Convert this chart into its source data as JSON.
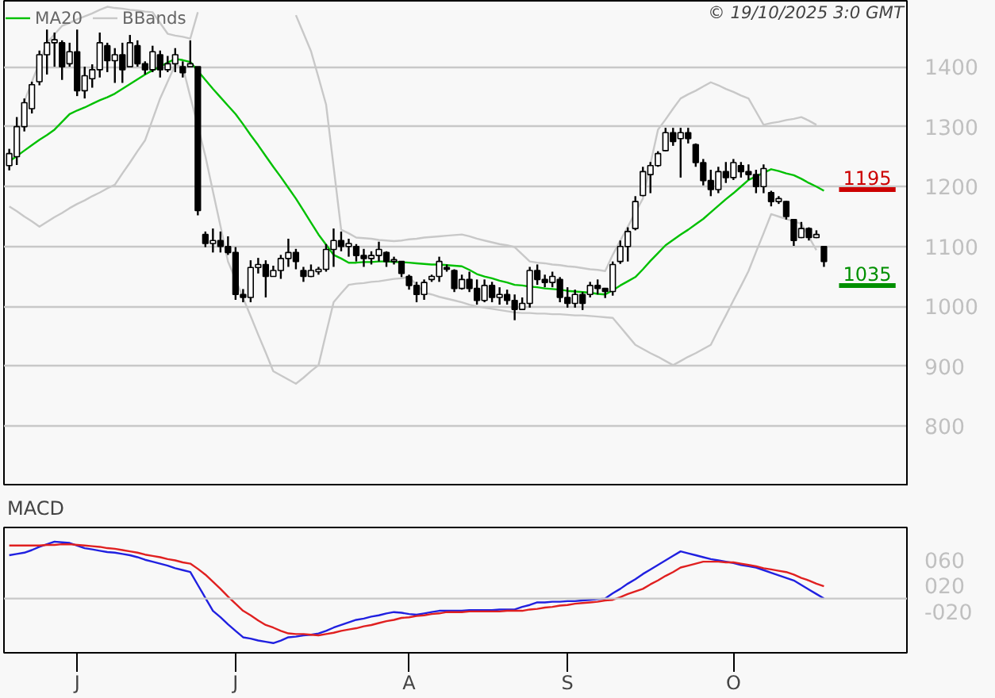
{
  "chart_data": [
    {
      "type": "candlestick",
      "color": "#000000",
      "categories": [
        null,
        null,
        null,
        null,
        null,
        null,
        null,
        null,
        null,
        null,
        null,
        null,
        null,
        null,
        null,
        null,
        null,
        null,
        null,
        null,
        null,
        null,
        null,
        null,
        null,
        null,
        null,
        null,
        null,
        null,
        null,
        null,
        null,
        null,
        null,
        null,
        null,
        null,
        null,
        null,
        null,
        null,
        null,
        null,
        null,
        null,
        null,
        null,
        null,
        null,
        null,
        null,
        null,
        null,
        null,
        null,
        null,
        null,
        null,
        null,
        null,
        null,
        null,
        null,
        null,
        null,
        null,
        null,
        null,
        null,
        null,
        null,
        null,
        null,
        null,
        null,
        null,
        null,
        null,
        null,
        null,
        null,
        null,
        null,
        null,
        null,
        null,
        null,
        null,
        null,
        null,
        null,
        null,
        null,
        null,
        null,
        null,
        null,
        null,
        null,
        null,
        null,
        null,
        null,
        null,
        null,
        null,
        null,
        null
      ],
      "ohlc": [
        [
          1235,
          1263,
          1227,
          1255
        ],
        [
          1250,
          1316,
          1236,
          1300
        ],
        [
          1300,
          1347,
          1292,
          1340
        ],
        [
          1330,
          1375,
          1322,
          1370
        ],
        [
          1375,
          1427,
          1369,
          1420
        ],
        [
          1420,
          1462,
          1387,
          1440
        ],
        [
          1440,
          1457,
          1400,
          1445
        ],
        [
          1440,
          1444,
          1378,
          1400
        ],
        [
          1405,
          1440,
          1400,
          1425
        ],
        [
          1425,
          1462,
          1351,
          1360
        ],
        [
          1360,
          1400,
          1347,
          1385
        ],
        [
          1380,
          1404,
          1365,
          1395
        ],
        [
          1395,
          1457,
          1382,
          1440
        ],
        [
          1435,
          1440,
          1391,
          1410
        ],
        [
          1410,
          1431,
          1373,
          1420
        ],
        [
          1420,
          1440,
          1373,
          1395
        ],
        [
          1400,
          1453,
          1400,
          1440
        ],
        [
          1435,
          1444,
          1400,
          1405
        ],
        [
          1405,
          1409,
          1387,
          1395
        ],
        [
          1395,
          1435,
          1391,
          1425
        ],
        [
          1420,
          1427,
          1382,
          1395
        ],
        [
          1395,
          1418,
          1391,
          1405
        ],
        [
          1405,
          1431,
          1391,
          1420
        ],
        [
          1400,
          1409,
          1382,
          1390
        ],
        [
          1400,
          1444,
          1400,
          1405
        ],
        [
          1400,
          1400,
          1152,
          1160
        ],
        [
          1120,
          1125,
          1099,
          1105
        ],
        [
          1105,
          1130,
          1090,
          1110
        ],
        [
          1110,
          1125,
          1090,
          1100
        ],
        [
          1100,
          1117,
          1086,
          1090
        ],
        [
          1090,
          1099,
          1011,
          1020
        ],
        [
          1020,
          1029,
          1007,
          1015
        ],
        [
          1015,
          1077,
          1007,
          1065
        ],
        [
          1065,
          1081,
          1055,
          1070
        ],
        [
          1070,
          1077,
          1015,
          1050
        ],
        [
          1050,
          1068,
          1050,
          1060
        ],
        [
          1060,
          1086,
          1046,
          1080
        ],
        [
          1080,
          1113,
          1066,
          1090
        ],
        [
          1090,
          1096,
          1062,
          1075
        ],
        [
          1060,
          1066,
          1041,
          1050
        ],
        [
          1050,
          1070,
          1049,
          1060
        ],
        [
          1058,
          1066,
          1053,
          1062
        ],
        [
          1062,
          1104,
          1058,
          1095
        ],
        [
          1095,
          1130,
          1066,
          1110
        ],
        [
          1110,
          1125,
          1092,
          1100
        ],
        [
          1100,
          1113,
          1083,
          1105
        ],
        [
          1100,
          1104,
          1075,
          1085
        ],
        [
          1085,
          1096,
          1066,
          1080
        ],
        [
          1080,
          1092,
          1070,
          1085
        ],
        [
          1085,
          1108,
          1075,
          1095
        ],
        [
          1090,
          1092,
          1066,
          1075
        ],
        [
          1075,
          1083,
          1070,
          1078
        ],
        [
          1075,
          1075,
          1049,
          1055
        ],
        [
          1050,
          1053,
          1028,
          1035
        ],
        [
          1035,
          1041,
          1007,
          1020
        ],
        [
          1020,
          1045,
          1011,
          1040
        ],
        [
          1045,
          1053,
          1041,
          1050
        ],
        [
          1050,
          1083,
          1041,
          1075
        ],
        [
          1065,
          1070,
          1058,
          1062
        ],
        [
          1060,
          1062,
          1024,
          1030
        ],
        [
          1030,
          1053,
          1028,
          1045
        ],
        [
          1045,
          1058,
          1024,
          1030
        ],
        [
          1030,
          1045,
          1003,
          1010
        ],
        [
          1010,
          1045,
          1007,
          1035
        ],
        [
          1035,
          1041,
          1007,
          1015
        ],
        [
          1015,
          1032,
          1003,
          1020
        ],
        [
          1020,
          1028,
          1003,
          1010
        ],
        [
          1010,
          1020,
          977,
          995
        ],
        [
          995,
          1015,
          994,
          1005
        ],
        [
          1005,
          1066,
          998,
          1060
        ],
        [
          1060,
          1070,
          1036,
          1045
        ],
        [
          1045,
          1053,
          1032,
          1040
        ],
        [
          1040,
          1058,
          1032,
          1050
        ],
        [
          1045,
          1049,
          1007,
          1015
        ],
        [
          1015,
          1032,
          998,
          1005
        ],
        [
          1005,
          1028,
          998,
          1020
        ],
        [
          1020,
          1024,
          994,
          1005
        ],
        [
          1020,
          1041,
          1015,
          1035
        ],
        [
          1035,
          1045,
          1020,
          1030
        ],
        [
          1030,
          1031,
          1014,
          1025
        ],
        [
          1025,
          1075,
          1018,
          1070
        ],
        [
          1075,
          1110,
          1071,
          1100
        ],
        [
          1100,
          1132,
          1075,
          1125
        ],
        [
          1130,
          1184,
          1127,
          1175
        ],
        [
          1185,
          1233,
          1184,
          1225
        ],
        [
          1220,
          1241,
          1189,
          1235
        ],
        [
          1235,
          1259,
          1233,
          1255
        ],
        [
          1260,
          1298,
          1259,
          1290
        ],
        [
          1290,
          1298,
          1268,
          1275
        ],
        [
          1280,
          1298,
          1215,
          1290
        ],
        [
          1290,
          1298,
          1272,
          1280
        ],
        [
          1270,
          1272,
          1233,
          1240
        ],
        [
          1240,
          1246,
          1202,
          1210
        ],
        [
          1210,
          1228,
          1184,
          1195
        ],
        [
          1195,
          1233,
          1189,
          1225
        ],
        [
          1225,
          1241,
          1206,
          1215
        ],
        [
          1215,
          1246,
          1211,
          1240
        ],
        [
          1235,
          1241,
          1215,
          1225
        ],
        [
          1225,
          1237,
          1211,
          1220
        ],
        [
          1220,
          1228,
          1189,
          1200
        ],
        [
          1200,
          1237,
          1189,
          1230
        ],
        [
          1190,
          1193,
          1167,
          1175
        ],
        [
          1175,
          1184,
          1171,
          1180
        ],
        [
          1175,
          1176,
          1145,
          1150
        ],
        [
          1145,
          1145,
          1101,
          1110
        ],
        [
          1115,
          1141,
          1114,
          1130
        ],
        [
          1130,
          1132,
          1110,
          1115
        ],
        [
          1115,
          1127,
          1114,
          1120
        ],
        [
          1100,
          1101,
          1066,
          1075
        ]
      ],
      "series": [
        {
          "name": "MA20",
          "type": "line",
          "color": "#00c000",
          "values": [
            1242,
            1251,
            1260,
            1269,
            1278,
            1286,
            1295,
            1308,
            1321,
            1327,
            1332,
            1338,
            1344,
            1349,
            1355,
            1363,
            1371,
            1379,
            1387,
            1394,
            1400,
            1407,
            1413,
            1411,
            1408,
            1393,
            1378,
            1363,
            1349,
            1335,
            1321,
            1304,
            1286,
            1269,
            1251,
            1233,
            1216,
            1198,
            1180,
            1160,
            1140,
            1120,
            1103,
            1086,
            1080,
            1073,
            1073,
            1074,
            1074,
            1075,
            1075,
            1074,
            1074,
            1073,
            1072,
            1071,
            1070,
            1070,
            1069,
            1068,
            1067,
            1061,
            1054,
            1050,
            1047,
            1043,
            1040,
            1036,
            1035,
            1033,
            1032,
            1030,
            1029,
            1028,
            1026,
            1025,
            1024,
            1023,
            1021,
            1020,
            1027,
            1035,
            1042,
            1049,
            1062,
            1076,
            1089,
            1102,
            1111,
            1120,
            1128,
            1137,
            1146,
            1157,
            1168,
            1179,
            1189,
            1200,
            1211,
            1217,
            1223,
            1229,
            1226,
            1222,
            1219,
            1213,
            1206,
            1200,
            1193
          ]
        },
        {
          "name": "BBands",
          "type": "line",
          "color": "#c8c8c8",
          "values": [
            null,
            null,
            1342,
            1375,
            1407,
            1440,
            1454,
            1468,
            1473,
            1479,
            1484,
            1489,
            1495,
            1500,
            1498,
            1497,
            1495,
            1494,
            1492,
            1491,
            1473,
            1455,
            1452,
            1450,
            1447,
            1491,
            null,
            null,
            null,
            null,
            null,
            null,
            null,
            null,
            null,
            null,
            null,
            null,
            1486,
            1456,
            1426,
            1382,
            1337,
            1233,
            1128,
            1122,
            1115,
            1114,
            1113,
            1111,
            1110,
            1109,
            1110,
            1112,
            1113,
            1115,
            1116,
            1117,
            1118,
            1119,
            1120,
            1117,
            1113,
            1110,
            1107,
            1104,
            1102,
            1099,
            1087,
            1075,
            1073,
            1072,
            1070,
            1069,
            1067,
            1066,
            1064,
            1062,
            1061,
            1059,
            1086,
            1110,
            1133,
            1157,
            1180,
            1238,
            1295,
            1312,
            1330,
            1347,
            1354,
            1360,
            1367,
            1374,
            1369,
            1363,
            1358,
            1352,
            1347,
            1325,
            1303,
            1306,
            1308,
            1311,
            1313,
            1316,
            1310,
            1303,
            null
          ]
        },
        {
          "type": "line",
          "color": "#c8c8c8",
          "values": [
            1167,
            1159,
            1150,
            1142,
            1133,
            1141,
            1149,
            1156,
            1164,
            1171,
            1177,
            1184,
            1190,
            1197,
            1203,
            1222,
            1240,
            1259,
            1277,
            1312,
            1347,
            1375,
            1403,
            1400,
            1350,
            1301,
            1251,
            1192,
            1134,
            1075,
            1045,
            1014,
            984,
            953,
            923,
            892,
            885,
            878,
            871,
            881,
            892,
            902,
            955,
            1007,
            1022,
            1036,
            1038,
            1039,
            1041,
            1042,
            1044,
            1046,
            1047,
            1049,
            1036,
            1023,
            1020,
            1016,
            1013,
            1010,
            1007,
            1003,
            1000,
            998,
            996,
            994,
            992,
            990,
            989,
            989,
            988,
            988,
            987,
            987,
            986,
            985,
            985,
            984,
            983,
            982,
            981,
            966,
            951,
            936,
            929,
            922,
            916,
            909,
            902,
            909,
            916,
            922,
            929,
            936,
            961,
            985,
            1010,
            1034,
            1059,
            1091,
            1122,
            1154,
            1150,
            1146,
            1142,
            1138,
            1116,
            1094,
            null
          ]
        }
      ],
      "ylim": [
        700,
        1510
      ],
      "yticks": [
        800,
        900,
        1000,
        1100,
        1200,
        1300,
        1400
      ],
      "grid": "y",
      "legend": "top left",
      "tick_labels": "y",
      "ref_lines": [
        {
          "axis": "y",
          "value": 1195,
          "label": "1195",
          "color": "#cc0000"
        },
        {
          "axis": "y",
          "value": 1035,
          "label": "1035",
          "color": "#009000"
        }
      ],
      "annotations": [
        "© 19/10/2025 3:0 GMT"
      ]
    },
    {
      "type": "line",
      "title": "MACD",
      "categories": [
        null,
        null,
        null,
        null,
        null,
        null,
        null,
        null,
        null,
        "J",
        null,
        null,
        null,
        null,
        null,
        null,
        null,
        null,
        null,
        null,
        null,
        null,
        null,
        null,
        null,
        null,
        null,
        null,
        null,
        null,
        "J",
        null,
        null,
        null,
        null,
        null,
        null,
        null,
        null,
        null,
        null,
        null,
        null,
        null,
        null,
        null,
        null,
        null,
        null,
        null,
        null,
        null,
        null,
        "A",
        null,
        null,
        null,
        null,
        null,
        null,
        null,
        null,
        null,
        null,
        null,
        null,
        null,
        null,
        null,
        null,
        null,
        null,
        null,
        null,
        "S",
        null,
        null,
        null,
        null,
        null,
        null,
        null,
        null,
        null,
        null,
        null,
        null,
        null,
        null,
        null,
        null,
        null,
        null,
        null,
        null,
        null,
        "O",
        null,
        null,
        null,
        null,
        null,
        null,
        null,
        null,
        null,
        null,
        null,
        null
      ],
      "series": [
        {
          "color": "#2020e0",
          "values": [
            67,
            69,
            71,
            75,
            80,
            84,
            88,
            87,
            86,
            82,
            78,
            76,
            74,
            72,
            71,
            69,
            67,
            64,
            60,
            57,
            54,
            51,
            47,
            44,
            41,
            21,
            1,
            -19,
            -29,
            -40,
            -50,
            -60,
            -62,
            -65,
            -67,
            -69,
            -65,
            -60,
            -59,
            -57,
            -56,
            -54,
            -50,
            -45,
            -41,
            -37,
            -33,
            -31,
            -28,
            -26,
            -23,
            -21,
            -22,
            -24,
            -25,
            -23,
            -21,
            -19,
            -19,
            -19,
            -19,
            -18,
            -18,
            -18,
            -18,
            -17,
            -17,
            -17,
            -13,
            -10,
            -6,
            -6,
            -5,
            -5,
            -4,
            -4,
            -3,
            -2,
            -1,
            0,
            8,
            15,
            23,
            30,
            38,
            45,
            52,
            59,
            66,
            73,
            70,
            67,
            64,
            61,
            59,
            57,
            55,
            52,
            50,
            48,
            44,
            40,
            36,
            32,
            28,
            21,
            14,
            7,
            0
          ]
        },
        {
          "color": "#e02020",
          "values": [
            82,
            82,
            82,
            82,
            82,
            83,
            83,
            84,
            84,
            83,
            82,
            81,
            80,
            78,
            77,
            75,
            73,
            71,
            68,
            66,
            64,
            61,
            59,
            56,
            54,
            46,
            37,
            26,
            15,
            3,
            -8,
            -19,
            -26,
            -34,
            -41,
            -45,
            -50,
            -54,
            -55,
            -55,
            -56,
            -57,
            -55,
            -53,
            -50,
            -48,
            -46,
            -43,
            -41,
            -38,
            -35,
            -33,
            -30,
            -29,
            -27,
            -26,
            -24,
            -23,
            -21,
            -21,
            -21,
            -20,
            -20,
            -20,
            -20,
            -20,
            -19,
            -19,
            -19,
            -17,
            -16,
            -14,
            -13,
            -11,
            -10,
            -8,
            -7,
            -6,
            -5,
            -3,
            -2,
            2,
            7,
            11,
            15,
            22,
            28,
            35,
            41,
            48,
            51,
            54,
            57,
            57,
            57,
            56,
            56,
            54,
            52,
            50,
            47,
            45,
            43,
            41,
            37,
            32,
            28,
            23,
            19
          ]
        }
      ],
      "ylim": [
        -84,
        110
      ],
      "yticks": [
        {
          "value": -20,
          "label": "-020"
        },
        {
          "value": 20,
          "label": "020"
        },
        {
          "value": 60,
          "label": "060"
        }
      ],
      "grid": false,
      "ref_lines": [
        {
          "axis": "y",
          "value": 0,
          "color": "#c8c8c8"
        }
      ]
    }
  ]
}
